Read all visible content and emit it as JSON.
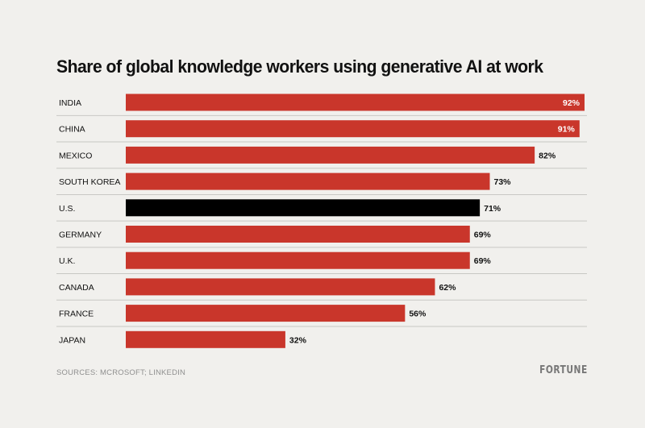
{
  "title": "Share of global knowledge workers using generative AI at work",
  "chart_data": {
    "type": "bar",
    "orientation": "horizontal",
    "categories": [
      "INDIA",
      "CHINA",
      "MEXICO",
      "SOUTH KOREA",
      "U.S.",
      "GERMANY",
      "U.K.",
      "CANADA",
      "FRANCE",
      "JAPAN"
    ],
    "values": [
      92,
      91,
      82,
      73,
      71,
      69,
      69,
      62,
      56,
      32
    ],
    "value_labels": [
      "92%",
      "91%",
      "82%",
      "73%",
      "71%",
      "69%",
      "69%",
      "62%",
      "56%",
      "32%"
    ],
    "highlight_category": "U.S.",
    "title": "Share of global knowledge workers using generative AI at work",
    "xlabel": "",
    "ylabel": "",
    "xlim": [
      0,
      92
    ],
    "grid": false,
    "legend": "none"
  },
  "colors": {
    "bar": "#c9362b",
    "highlight_bar": "#000000",
    "background": "#f1f0ed",
    "separator": "#c8c8c4",
    "label_outside": "#111111",
    "label_inside": "#ffffff"
  },
  "footer": {
    "source": "SOURCES: MCROSOFT; LINKEDIN",
    "logo": "FORTUNE"
  }
}
